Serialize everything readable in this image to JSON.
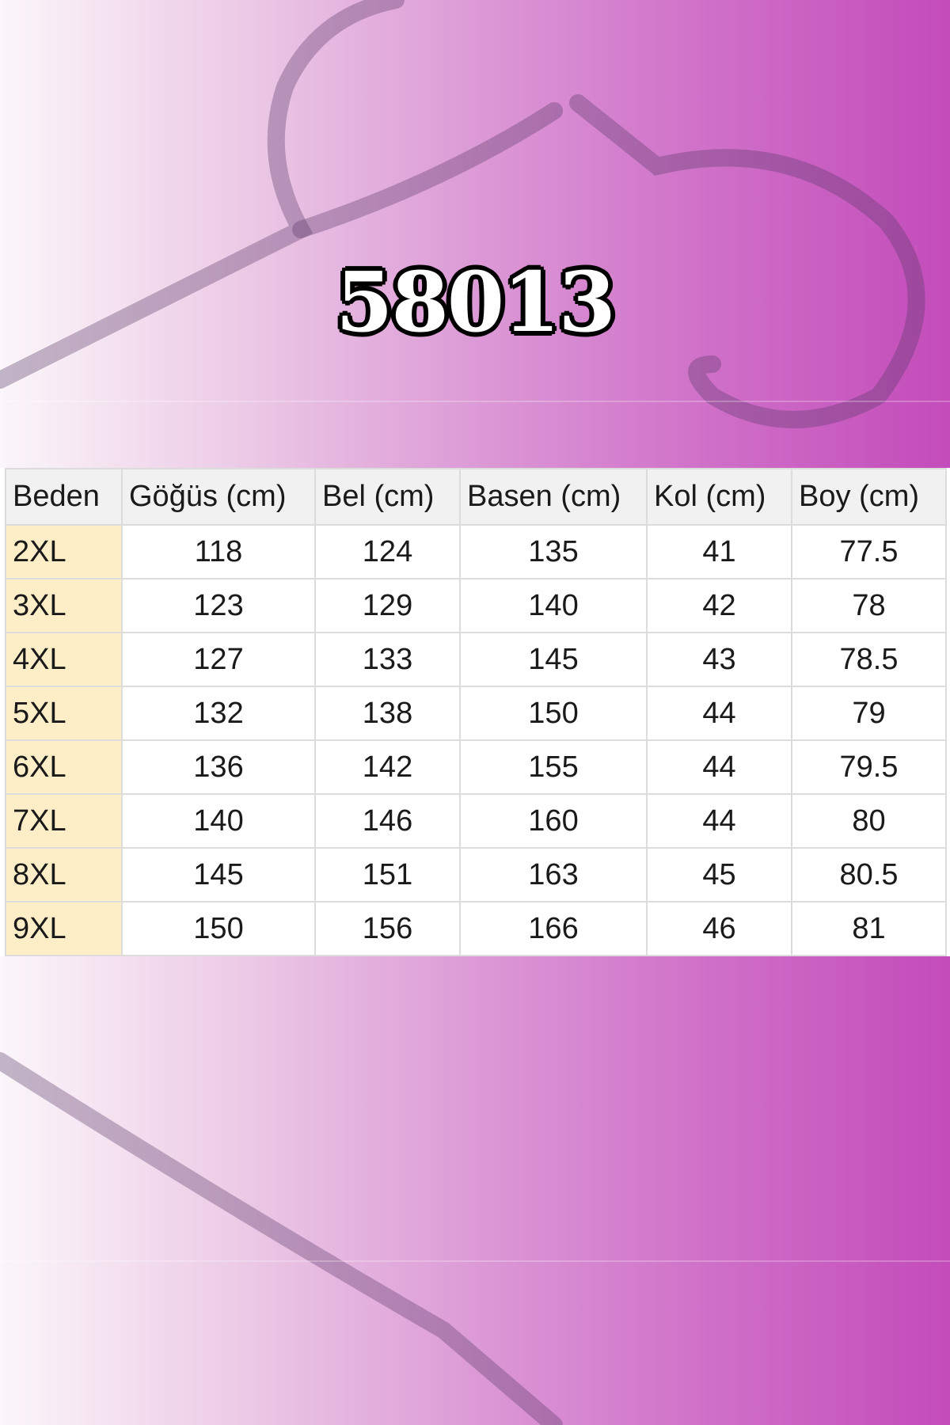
{
  "title": "58013",
  "colors": {
    "background_left": "#fbf6fa",
    "background_right": "#c34cba",
    "size_column": "#fdeec8",
    "header_bg": "#f1f1f1"
  },
  "table": {
    "headers": [
      "Beden",
      "Göğüs (cm)",
      "Bel (cm)",
      "Basen (cm)",
      "Kol (cm)",
      "Boy (cm)"
    ],
    "rows": [
      [
        "2XL",
        "118",
        "124",
        "135",
        "41",
        "77.5"
      ],
      [
        "3XL",
        "123",
        "129",
        "140",
        "42",
        "78"
      ],
      [
        "4XL",
        "127",
        "133",
        "145",
        "43",
        "78.5"
      ],
      [
        "5XL",
        "132",
        "138",
        "150",
        "44",
        "79"
      ],
      [
        "6XL",
        "136",
        "142",
        "155",
        "44",
        "79.5"
      ],
      [
        "7XL",
        "140",
        "146",
        "160",
        "44",
        "80"
      ],
      [
        "8XL",
        "145",
        "151",
        "163",
        "45",
        "80.5"
      ],
      [
        "9XL",
        "150",
        "156",
        "166",
        "46",
        "81"
      ]
    ]
  }
}
